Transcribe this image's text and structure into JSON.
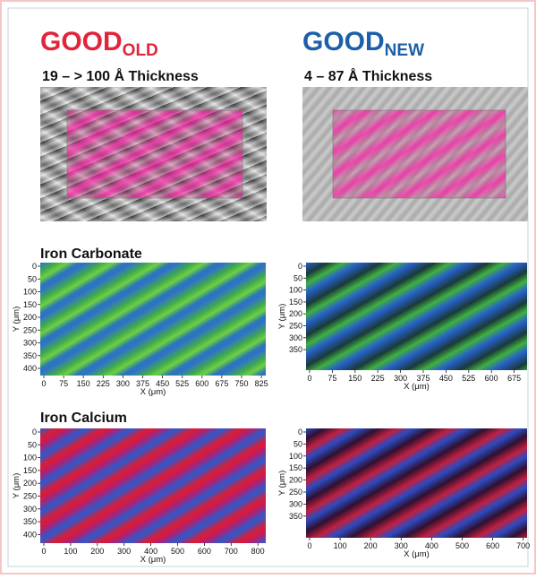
{
  "columns": [
    {
      "title": "GOOD",
      "subscript": "OLD",
      "thickness": "19 – > 100 Å Thickness"
    },
    {
      "title": "GOOD",
      "subscript": "NEW",
      "thickness": "4 – 87 Å Thickness"
    }
  ],
  "sections": [
    {
      "label": "Iron Carbonate",
      "panels": [
        {
          "xticks": [
            0,
            75,
            150,
            225,
            300,
            375,
            450,
            525,
            600,
            675,
            750,
            825
          ],
          "yticks": [
            0,
            50,
            100,
            150,
            200,
            250,
            300,
            350,
            400
          ],
          "xlabel": "X (μm)",
          "ylabel": "Y (μm)"
        },
        {
          "xticks": [
            0,
            75,
            150,
            225,
            300,
            375,
            450,
            525,
            600,
            675
          ],
          "yticks": [
            0,
            50,
            100,
            150,
            200,
            250,
            300,
            350
          ],
          "xlabel": "X (μm)",
          "ylabel": "Y (μm)"
        }
      ]
    },
    {
      "label": "Iron Calcium",
      "panels": [
        {
          "xticks": [
            0,
            100,
            200,
            300,
            400,
            500,
            600,
            700,
            800
          ],
          "yticks": [
            0,
            50,
            100,
            150,
            200,
            250,
            300,
            350,
            400
          ],
          "xlabel": "X (μm)",
          "ylabel": "Y (μm)"
        },
        {
          "xticks": [
            0,
            100,
            200,
            300,
            400,
            500,
            600,
            700
          ],
          "yticks": [
            0,
            50,
            100,
            150,
            200,
            250,
            300,
            350
          ],
          "xlabel": "X (μm)",
          "ylabel": "Y (μm)"
        }
      ]
    }
  ]
}
